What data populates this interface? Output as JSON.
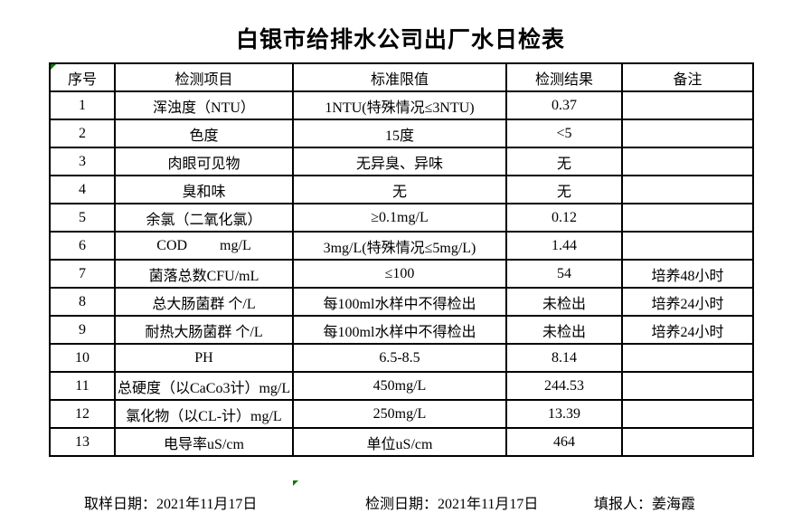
{
  "title": "白银市给排水公司出厂水日检表",
  "table": {
    "headers": [
      "序号",
      "检测项目",
      "标准限值",
      "检测结果",
      "备注"
    ],
    "rows": [
      {
        "no": "1",
        "item": "浑浊度（NTU）",
        "limit": "1NTU(特殊情况≤3NTU)",
        "result": "0.37",
        "note": ""
      },
      {
        "no": "2",
        "item": "色度",
        "limit": "15度",
        "result": "<5",
        "note": ""
      },
      {
        "no": "3",
        "item": "肉眼可见物",
        "limit": "无异臭、异味",
        "result": "无",
        "note": ""
      },
      {
        "no": "4",
        "item": "臭和味",
        "limit": "无",
        "result": "无",
        "note": ""
      },
      {
        "no": "5",
        "item": "余氯（二氧化氯）",
        "limit": "≥0.1mg/L",
        "result": "0.12",
        "note": ""
      },
      {
        "no": "6",
        "item": "COD         mg/L",
        "limit": "3mg/L(特殊情况≤5mg/L)",
        "result": "1.44",
        "note": ""
      },
      {
        "no": "7",
        "item": "菌落总数CFU/mL",
        "limit": "≤100",
        "result": "54",
        "note": "培养48小时"
      },
      {
        "no": "8",
        "item": "总大肠菌群 个/L",
        "limit": "每100ml水样中不得检出",
        "result": "未检出",
        "note": "培养24小时"
      },
      {
        "no": "9",
        "item": "耐热大肠菌群 个/L",
        "limit": "每100ml水样中不得检出",
        "result": "未检出",
        "note": "培养24小时"
      },
      {
        "no": "10",
        "item": "PH",
        "limit": "6.5-8.5",
        "result": "8.14",
        "note": ""
      },
      {
        "no": "11",
        "item": "总硬度（以CaCo3计）mg/L",
        "limit": "450mg/L",
        "result": "244.53",
        "note": ""
      },
      {
        "no": "12",
        "item": "氯化物（以CL-计）mg/L",
        "limit": "250mg/L",
        "result": "13.39",
        "note": ""
      },
      {
        "no": "13",
        "item": "电导率uS/cm",
        "limit": "单位uS/cm",
        "result": "464",
        "note": ""
      }
    ]
  },
  "footer": {
    "sampling_date_label": "取样日期：",
    "sampling_date": "2021年11月17日",
    "testing_date_label": "检测日期：",
    "testing_date": "2021年11月17日",
    "reporter_label": "填报人：",
    "reporter": "姜海霞"
  },
  "colors": {
    "border": "#000000",
    "excel_marker_green": "#0a7a0a",
    "background": "#ffffff"
  }
}
